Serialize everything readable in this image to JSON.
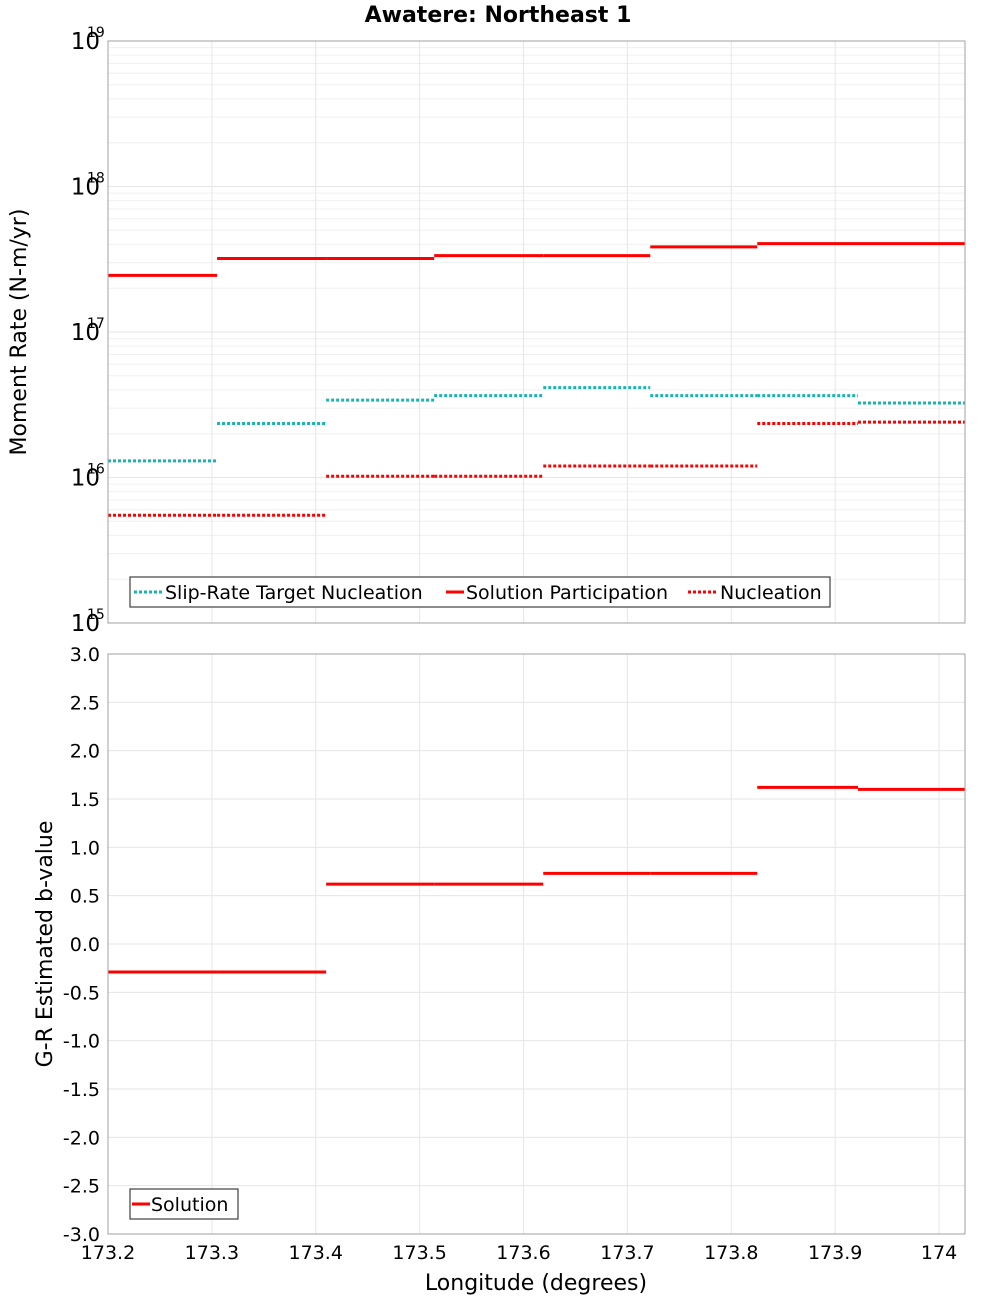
{
  "colors": {
    "slip_rate_target": "#1ab3b3",
    "solution": "#ff0000",
    "grid": "#e6e6e6",
    "minor_grid": "#f0f0f0",
    "frame": "#a0a0a0"
  },
  "chart_data": [
    {
      "type": "line",
      "title": "Awatere: Northeast 1",
      "xlabel": "",
      "ylabel": "Moment Rate (N-m/yr)",
      "yscale": "log",
      "ylim": [
        1000000000000000.0,
        1e+19
      ],
      "xlim": [
        173.2,
        174.025
      ],
      "y_ticks": [
        {
          "base": "10",
          "exp": "15",
          "value": 1000000000000000.0
        },
        {
          "base": "10",
          "exp": "16",
          "value": 1e+16
        },
        {
          "base": "10",
          "exp": "17",
          "value": 1e+17
        },
        {
          "base": "10",
          "exp": "18",
          "value": 1e+18
        },
        {
          "base": "10",
          "exp": "19",
          "value": 1e+19
        }
      ],
      "legend": {
        "placement": "bottom-left",
        "entries": [
          {
            "name": "Slip-Rate Target Nucleation",
            "style": "dotted",
            "color_key": "slip_rate_target"
          },
          {
            "name": "Solution Participation",
            "style": "solid",
            "color_key": "solution"
          },
          {
            "name": "Nucleation",
            "style": "dotted",
            "color_key": "solution"
          }
        ]
      },
      "bin_edges": [
        173.2,
        173.305,
        173.41,
        173.514,
        173.619,
        173.722,
        173.825,
        173.922,
        174.025
      ],
      "series": [
        {
          "name": "Slip-Rate Target Nucleation",
          "style": "dotted",
          "color_key": "slip_rate_target",
          "values": [
            1.3e+16,
            2.35e+16,
            3.4e+16,
            3.65e+16,
            4.15e+16,
            3.65e+16,
            3.65e+16,
            3.25e+16
          ]
        },
        {
          "name": "Solution Participation",
          "style": "solid",
          "color_key": "solution",
          "values": [
            2.45e+17,
            3.2e+17,
            3.2e+17,
            3.35e+17,
            3.35e+17,
            3.85e+17,
            4.05e+17,
            4.05e+17
          ]
        },
        {
          "name": "Nucleation",
          "style": "dotted",
          "color_key": "solution",
          "values": [
            5500000000000000.0,
            5500000000000000.0,
            1.02e+16,
            1.02e+16,
            1.2e+16,
            1.2e+16,
            2.35e+16,
            2.4e+16
          ]
        }
      ]
    },
    {
      "type": "line",
      "title": "",
      "xlabel": "Longitude (degrees)",
      "ylabel": "G-R Estimated b-value",
      "ylim": [
        -3.0,
        3.0
      ],
      "xlim": [
        173.2,
        174.025
      ],
      "x_ticks": [
        "173.2",
        "173.3",
        "173.4",
        "173.5",
        "173.6",
        "173.7",
        "173.8",
        "173.9",
        "174"
      ],
      "x_tick_values": [
        173.2,
        173.3,
        173.4,
        173.5,
        173.6,
        173.7,
        173.8,
        173.9,
        174.0
      ],
      "y_ticks": [
        "-3.0",
        "-2.5",
        "-2.0",
        "-1.5",
        "-1.0",
        "-0.5",
        "0.0",
        "0.5",
        "1.0",
        "1.5",
        "2.0",
        "2.5",
        "3.0"
      ],
      "legend": {
        "placement": "bottom-left",
        "entries": [
          {
            "name": "Solution",
            "style": "solid",
            "color_key": "solution"
          }
        ]
      },
      "bin_edges": [
        173.2,
        173.305,
        173.41,
        173.514,
        173.619,
        173.722,
        173.825,
        173.922,
        174.025
      ],
      "series": [
        {
          "name": "Solution",
          "style": "solid",
          "color_key": "solution",
          "values": [
            -0.29,
            -0.29,
            0.62,
            0.62,
            0.73,
            0.73,
            1.62,
            1.6
          ]
        }
      ]
    }
  ]
}
